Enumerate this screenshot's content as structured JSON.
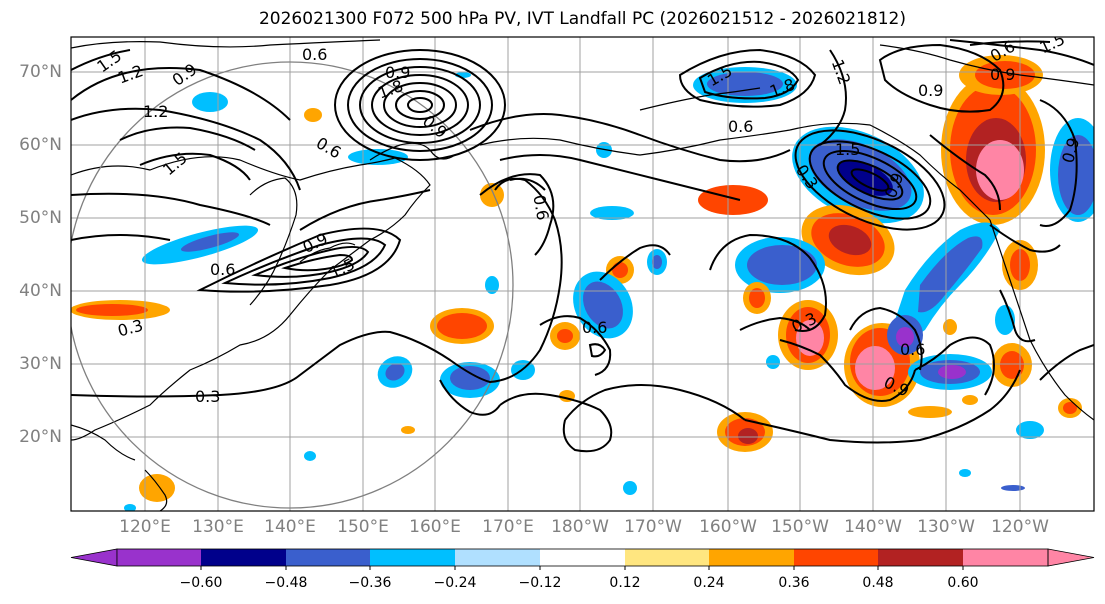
{
  "title": "2026021300 F072 500 hPa PV, IVT Landfall PC (2026021512 - 2026021812)",
  "lat_labels": [
    "70°N",
    "60°N",
    "50°N",
    "40°N",
    "30°N",
    "20°N"
  ],
  "lon_labels": [
    "120°E",
    "130°E",
    "140°E",
    "150°E",
    "160°E",
    "170°E",
    "180°W",
    "170°W",
    "160°W",
    "150°W",
    "140°W",
    "130°W",
    "120°W"
  ],
  "contour_labels": [
    "1.5",
    "0.6",
    "1.2",
    "0.9",
    "1.2",
    "1.5",
    "0.9",
    "1.8",
    "0.6",
    "0.9",
    "0.6",
    "1.5",
    "0.9",
    "1.5",
    "1.2",
    "0.9",
    "1.5",
    "0.6",
    "1.8",
    "0.6",
    "0.9",
    "1.5",
    "0.9",
    "0.3",
    "0.6",
    "0.3",
    "0.3",
    "0.6",
    "0.9",
    "0.6",
    "0.9",
    "0.3"
  ],
  "colorbar": {
    "ticks": [
      "−0.60",
      "−0.48",
      "−0.36",
      "−0.24",
      "−0.12",
      "0.12",
      "0.24",
      "0.36",
      "0.48",
      "0.60"
    ],
    "colors": [
      "#9932cc",
      "#00008b",
      "#3a5fcd",
      "#00bfff",
      "#b0e0ff",
      "#ffffff",
      "#ffe680",
      "#ffa500",
      "#ff4500",
      "#b22222",
      "#ff85a5"
    ]
  },
  "colors": {
    "neg_strong": "#3a5fcd",
    "neg_mid": "#00bfff",
    "neg_light": "#b0e0ff",
    "neg_dark": "#00008b",
    "neg_extreme": "#9932cc",
    "pos_light": "#ffe680",
    "pos_mid": "#ffa500",
    "pos_strong": "#ff4500",
    "pos_dark": "#b22222",
    "pos_extreme": "#ff85a5"
  }
}
